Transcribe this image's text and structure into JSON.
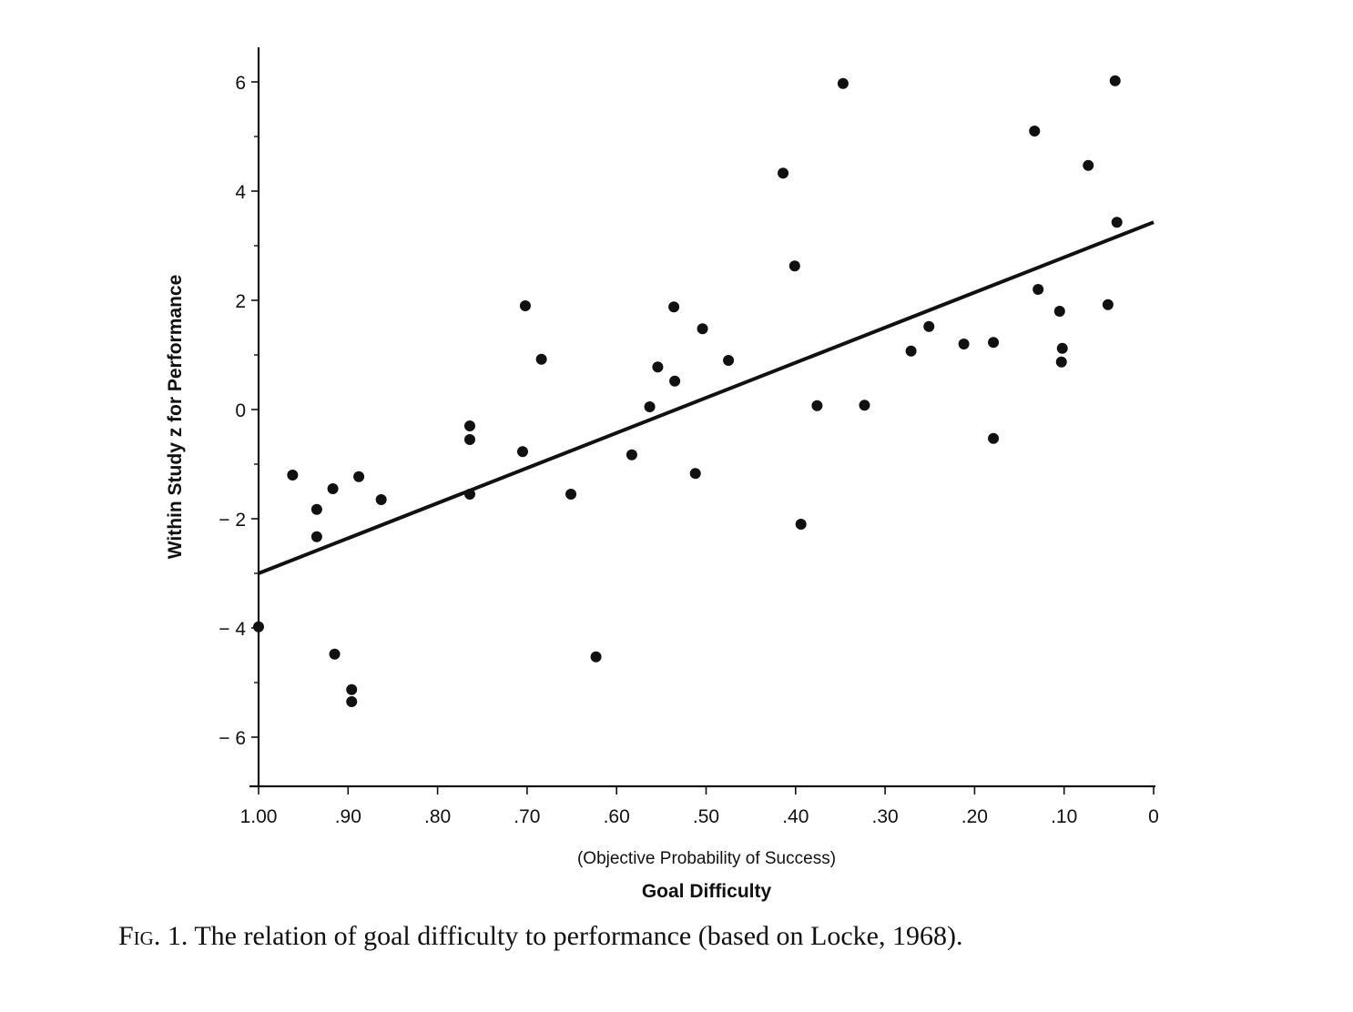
{
  "chart_data": {
    "type": "scatter",
    "title": "",
    "xlabel_sub": "(Objective Probability of Success)",
    "xlabel": "Goal Difficulty",
    "ylabel": "Within Study z for Performance",
    "xlim": [
      1.0,
      0.0
    ],
    "ylim": [
      -7,
      6.6
    ],
    "x_reversed": true,
    "x_ticks": [
      1.0,
      0.9,
      0.8,
      0.7,
      0.6,
      0.5,
      0.4,
      0.3,
      0.2,
      0.1,
      0.0
    ],
    "x_tick_labels": [
      "1.00",
      ".90",
      ".80",
      ".70",
      ".60",
      ".50",
      ".40",
      ".30",
      ".20",
      ".10",
      "0"
    ],
    "y_ticks": [
      6,
      4,
      2,
      0,
      -2,
      -4,
      -6
    ],
    "y_tick_labels": [
      "6",
      "4",
      "2",
      "0",
      "− 2",
      "− 4",
      "− 6"
    ],
    "y_minor_ticks": [
      5,
      3,
      1,
      -1,
      -3,
      -5
    ],
    "grid": false,
    "points": [
      {
        "x": 0.962,
        "y": -1.2
      },
      {
        "x": 0.935,
        "y": -1.83
      },
      {
        "x": 0.917,
        "y": -1.45
      },
      {
        "x": 0.888,
        "y": -1.23
      },
      {
        "x": 0.863,
        "y": -1.65
      },
      {
        "x": 0.935,
        "y": -2.33
      },
      {
        "x": 1.0,
        "y": -3.98
      },
      {
        "x": 0.915,
        "y": -4.48
      },
      {
        "x": 0.896,
        "y": -5.13
      },
      {
        "x": 0.896,
        "y": -5.35
      },
      {
        "x": 0.702,
        "y": 1.9
      },
      {
        "x": 0.684,
        "y": 0.92
      },
      {
        "x": 0.764,
        "y": -0.3
      },
      {
        "x": 0.764,
        "y": -0.55
      },
      {
        "x": 0.705,
        "y": -0.77
      },
      {
        "x": 0.764,
        "y": -1.55
      },
      {
        "x": 0.651,
        "y": -1.55
      },
      {
        "x": 0.623,
        "y": -4.53
      },
      {
        "x": 0.536,
        "y": 1.88
      },
      {
        "x": 0.504,
        "y": 1.48
      },
      {
        "x": 0.475,
        "y": 0.9
      },
      {
        "x": 0.554,
        "y": 0.78
      },
      {
        "x": 0.535,
        "y": 0.52
      },
      {
        "x": 0.563,
        "y": 0.05
      },
      {
        "x": 0.583,
        "y": -0.83
      },
      {
        "x": 0.512,
        "y": -1.17
      },
      {
        "x": 0.347,
        "y": 5.97
      },
      {
        "x": 0.414,
        "y": 4.33
      },
      {
        "x": 0.401,
        "y": 2.63
      },
      {
        "x": 0.376,
        "y": 0.07
      },
      {
        "x": 0.323,
        "y": 0.08
      },
      {
        "x": 0.394,
        "y": -2.1
      },
      {
        "x": 0.251,
        "y": 1.52
      },
      {
        "x": 0.271,
        "y": 1.07
      },
      {
        "x": 0.212,
        "y": 1.2
      },
      {
        "x": 0.179,
        "y": 1.23
      },
      {
        "x": 0.179,
        "y": -0.53
      },
      {
        "x": 0.043,
        "y": 6.02
      },
      {
        "x": 0.133,
        "y": 5.1
      },
      {
        "x": 0.073,
        "y": 4.47
      },
      {
        "x": 0.041,
        "y": 3.43
      },
      {
        "x": 0.129,
        "y": 2.2
      },
      {
        "x": 0.105,
        "y": 1.8
      },
      {
        "x": 0.051,
        "y": 1.92
      },
      {
        "x": 0.102,
        "y": 1.12
      },
      {
        "x": 0.103,
        "y": 0.87
      }
    ],
    "regression_line": {
      "x": [
        1.0,
        0.0
      ],
      "y": [
        -3.0,
        3.43
      ]
    }
  },
  "caption": {
    "label": "Fig. 1.",
    "text": "The relation of goal difficulty to performance (based on Locke, 1968)."
  }
}
